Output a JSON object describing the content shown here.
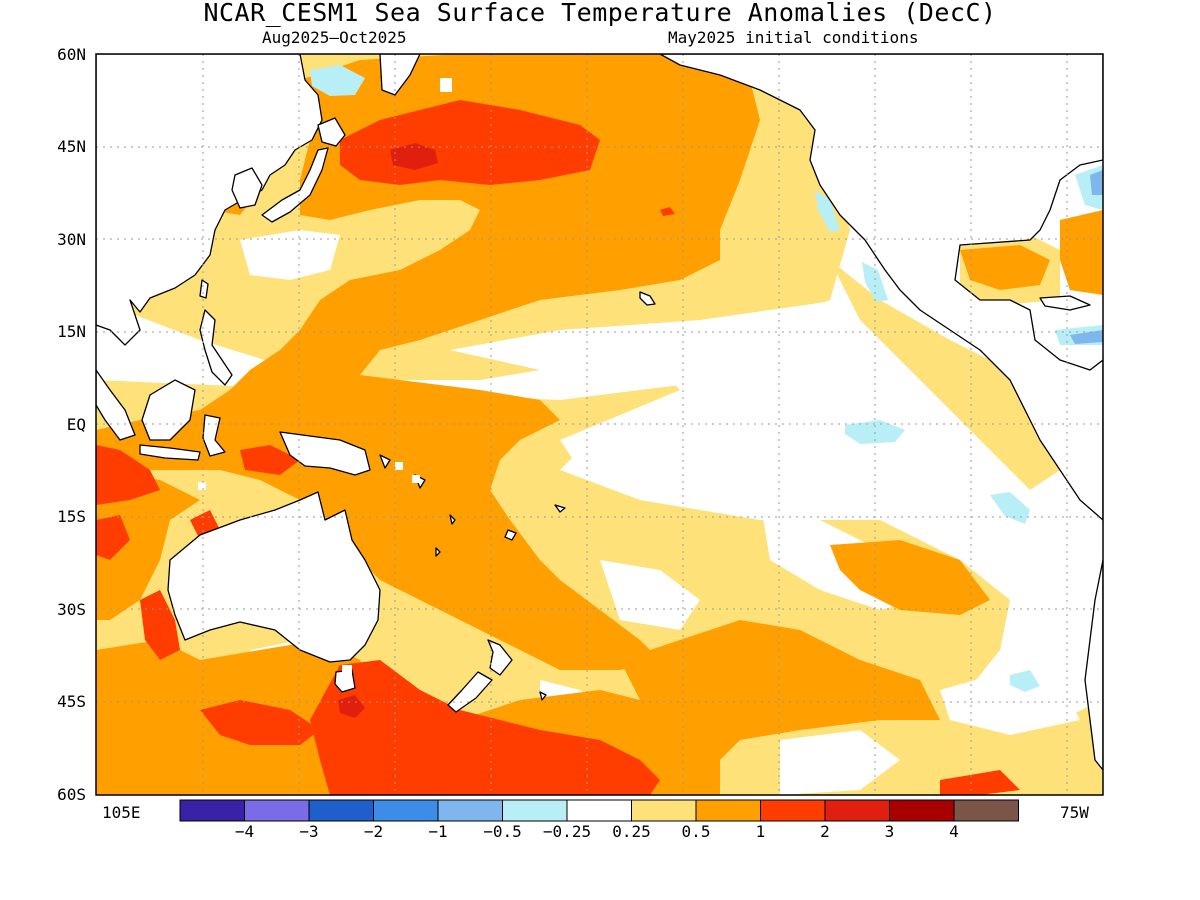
{
  "title": "NCAR_CESM1 Sea Surface Temperature Anomalies (DecC)",
  "subtitle_left": "Aug2025—Oct2025",
  "subtitle_right": "May2025 initial conditions",
  "lat_ticks": [
    "60N",
    "45N",
    "30N",
    "15N",
    "EQ",
    "15S",
    "30S",
    "45S",
    "60S"
  ],
  "lon_ticks": {
    "left": "105E",
    "right": "75W"
  },
  "colorbar": {
    "colors": [
      "#3a22a8",
      "#7a6ce6",
      "#1f5fcc",
      "#3c8ce8",
      "#7fb6ee",
      "#b8eef5",
      "#ffffff",
      "#ffe17a",
      "#ff9f00",
      "#ff3d00",
      "#e01f0f",
      "#a80000",
      "#7a5548"
    ],
    "labels": [
      "−4",
      "−3",
      "−2",
      "−1",
      "−0.5",
      "−0.25",
      "0.25",
      "0.5",
      "1",
      "2",
      "3",
      "4"
    ]
  }
}
